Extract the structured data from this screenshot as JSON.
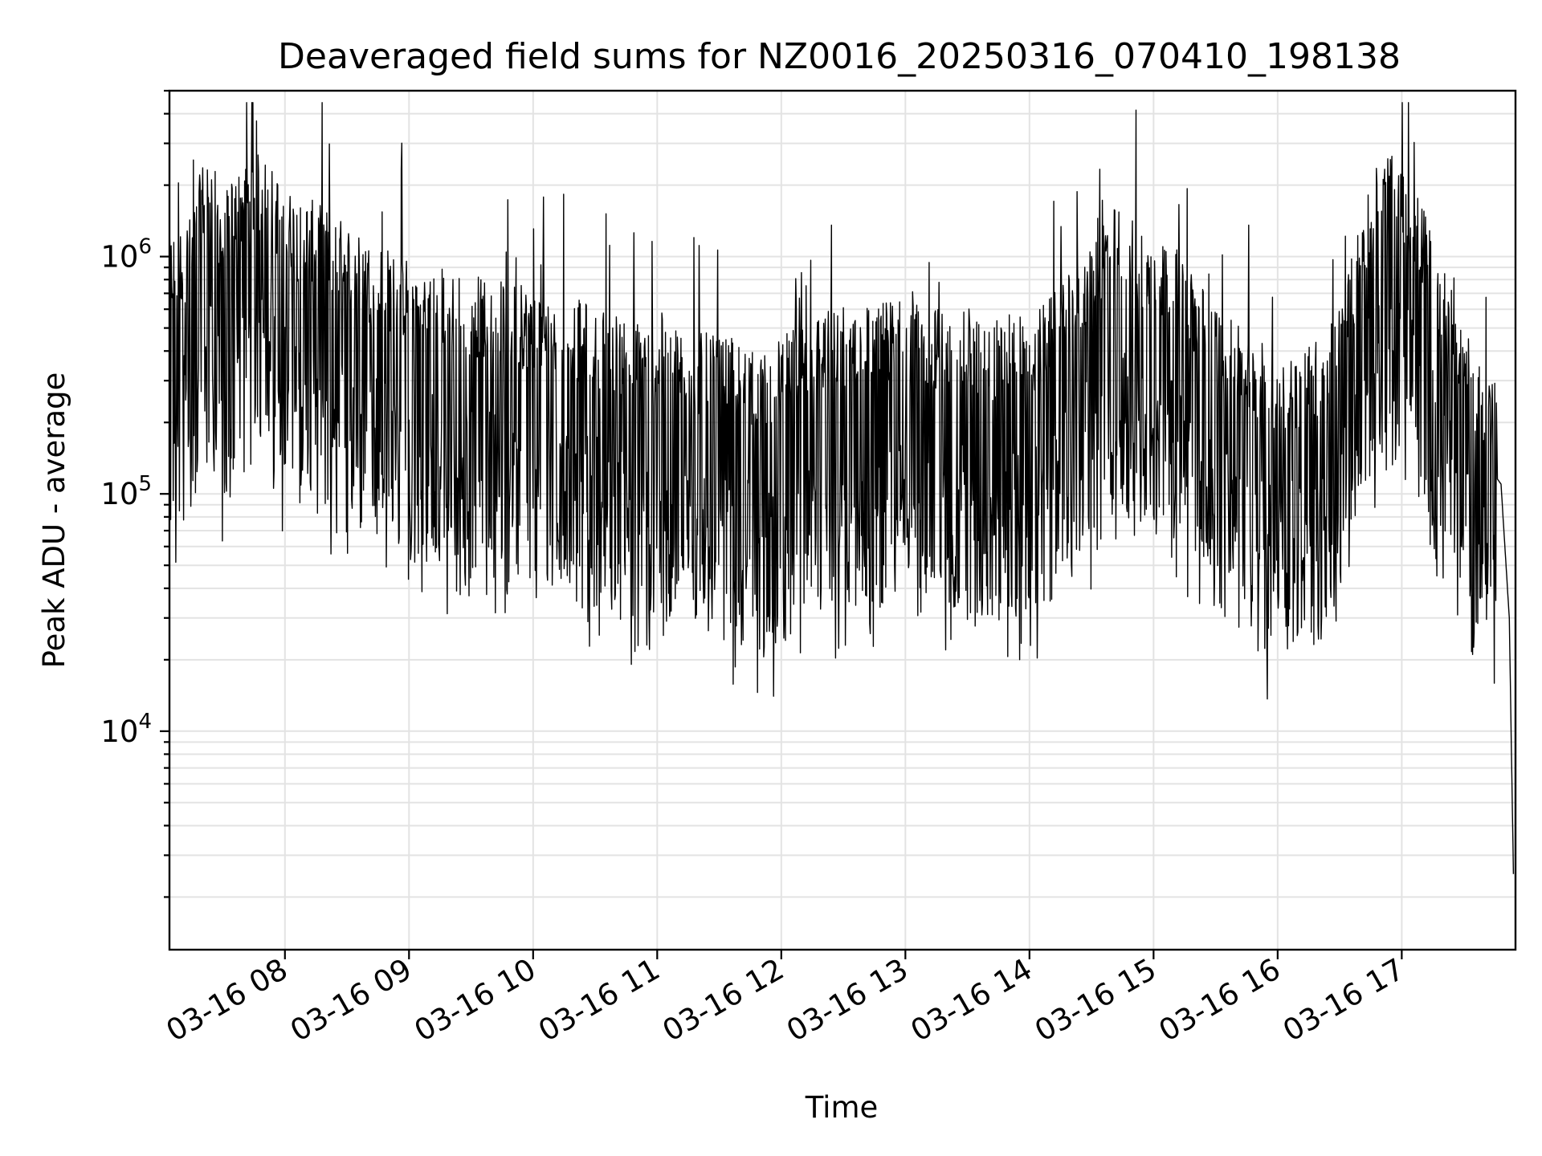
{
  "chart_data": {
    "type": "line",
    "title": "Deaveraged field sums for NZ0016_20250316_070410_198138",
    "xlabel": "Time",
    "ylabel": "Peak ADU - average",
    "yscale": "log",
    "grid": true,
    "grid_minor": true,
    "legend": "none",
    "line_color": "#000000",
    "xlim": [
      "2025-03-16 07:04:10",
      "2025-03-16 17:55:00"
    ],
    "ylim": [
      1200,
      5000000
    ],
    "x_ticks": [
      {
        "t": "2025-03-16 08:00",
        "label": "03-16 08"
      },
      {
        "t": "2025-03-16 09:00",
        "label": "03-16 09"
      },
      {
        "t": "2025-03-16 10:00",
        "label": "03-16 10"
      },
      {
        "t": "2025-03-16 11:00",
        "label": "03-16 11"
      },
      {
        "t": "2025-03-16 12:00",
        "label": "03-16 12"
      },
      {
        "t": "2025-03-16 13:00",
        "label": "03-16 13"
      },
      {
        "t": "2025-03-16 14:00",
        "label": "03-16 14"
      },
      {
        "t": "2025-03-16 15:00",
        "label": "03-16 15"
      },
      {
        "t": "2025-03-16 16:00",
        "label": "03-16 16"
      },
      {
        "t": "2025-03-16 17:00",
        "label": "03-16 17"
      }
    ],
    "y_ticks": [
      {
        "value": 10000,
        "base": "10",
        "exp": "4"
      },
      {
        "value": 100000,
        "base": "10",
        "exp": "5"
      },
      {
        "value": 1000000,
        "base": "10",
        "exp": "6"
      }
    ],
    "series": [
      {
        "x": [
          "2025-03-16 07:04",
          "2025-03-16 07:10",
          "2025-03-16 07:15",
          "2025-03-16 07:20",
          "2025-03-16 07:24",
          "2025-03-16 07:30",
          "2025-03-16 07:36",
          "2025-03-16 07:42",
          "2025-03-16 07:48",
          "2025-03-16 07:54",
          "2025-03-16 08:00",
          "2025-03-16 08:06",
          "2025-03-16 08:12",
          "2025-03-16 08:18",
          "2025-03-16 08:24",
          "2025-03-16 08:30",
          "2025-03-16 08:36",
          "2025-03-16 08:42",
          "2025-03-16 08:48",
          "2025-03-16 08:54",
          "2025-03-16 09:00",
          "2025-03-16 09:06",
          "2025-03-16 09:12",
          "2025-03-16 09:18",
          "2025-03-16 09:24",
          "2025-03-16 09:30",
          "2025-03-16 09:36",
          "2025-03-16 09:42",
          "2025-03-16 09:48",
          "2025-03-16 09:54",
          "2025-03-16 10:00",
          "2025-03-16 10:06",
          "2025-03-16 10:12",
          "2025-03-16 10:18",
          "2025-03-16 10:24",
          "2025-03-16 10:30",
          "2025-03-16 10:36",
          "2025-03-16 10:42",
          "2025-03-16 10:48",
          "2025-03-16 10:54",
          "2025-03-16 11:00",
          "2025-03-16 11:06",
          "2025-03-16 11:12",
          "2025-03-16 11:18",
          "2025-03-16 11:24",
          "2025-03-16 11:30",
          "2025-03-16 11:36",
          "2025-03-16 11:42",
          "2025-03-16 11:48",
          "2025-03-16 11:54",
          "2025-03-16 12:00",
          "2025-03-16 12:06",
          "2025-03-16 12:12",
          "2025-03-16 12:18",
          "2025-03-16 12:24",
          "2025-03-16 12:30",
          "2025-03-16 12:36",
          "2025-03-16 12:42",
          "2025-03-16 12:48",
          "2025-03-16 12:54",
          "2025-03-16 13:00",
          "2025-03-16 13:06",
          "2025-03-16 13:12",
          "2025-03-16 13:18",
          "2025-03-16 13:24",
          "2025-03-16 13:30",
          "2025-03-16 13:36",
          "2025-03-16 13:42",
          "2025-03-16 13:48",
          "2025-03-16 13:54",
          "2025-03-16 14:00",
          "2025-03-16 14:06",
          "2025-03-16 14:12",
          "2025-03-16 14:18",
          "2025-03-16 14:24",
          "2025-03-16 14:30",
          "2025-03-16 14:36",
          "2025-03-16 14:42",
          "2025-03-16 14:48",
          "2025-03-16 14:54",
          "2025-03-16 15:00",
          "2025-03-16 15:06",
          "2025-03-16 15:12",
          "2025-03-16 15:18",
          "2025-03-16 15:24",
          "2025-03-16 15:30",
          "2025-03-16 15:36",
          "2025-03-16 15:42",
          "2025-03-16 15:48",
          "2025-03-16 15:54",
          "2025-03-16 16:00",
          "2025-03-16 16:06",
          "2025-03-16 16:12",
          "2025-03-16 16:18",
          "2025-03-16 16:24",
          "2025-03-16 16:30",
          "2025-03-16 16:36",
          "2025-03-16 16:42",
          "2025-03-16 16:48",
          "2025-03-16 16:54",
          "2025-03-16 17:00",
          "2025-03-16 17:06",
          "2025-03-16 17:12",
          "2025-03-16 17:18",
          "2025-03-16 17:24",
          "2025-03-16 17:30",
          "2025-03-16 17:36",
          "2025-03-16 17:42",
          "2025-03-16 17:48",
          "2025-03-16 17:52",
          "2025-03-16 17:54"
        ],
        "y": [
          500000,
          550000,
          600000,
          1000000,
          1100000,
          700000,
          900000,
          1000000,
          1100000,
          950000,
          800000,
          700000,
          700000,
          650000,
          600000,
          550000,
          500000,
          450000,
          450000,
          400000,
          400000,
          380000,
          370000,
          360000,
          350000,
          340000,
          330000,
          320000,
          310000,
          300000,
          300000,
          290000,
          280000,
          270000,
          260000,
          250000,
          240000,
          230000,
          220000,
          210000,
          200000,
          200000,
          200000,
          190000,
          190000,
          180000,
          180000,
          170000,
          170000,
          170000,
          180000,
          200000,
          220000,
          230000,
          240000,
          250000,
          250000,
          260000,
          260000,
          260000,
          250000,
          250000,
          250000,
          240000,
          240000,
          230000,
          230000,
          220000,
          220000,
          220000,
          230000,
          250000,
          280000,
          320000,
          400000,
          500000,
          600000,
          650000,
          600000,
          550000,
          500000,
          450000,
          400000,
          350000,
          300000,
          250000,
          220000,
          200000,
          180000,
          170000,
          160000,
          160000,
          170000,
          180000,
          200000,
          250000,
          400000,
          700000,
          1000000,
          1100000,
          900000,
          800000,
          600000,
          400000,
          300000,
          200000,
          150000,
          130000,
          110000,
          30000,
          2500
        ]
      }
    ]
  }
}
